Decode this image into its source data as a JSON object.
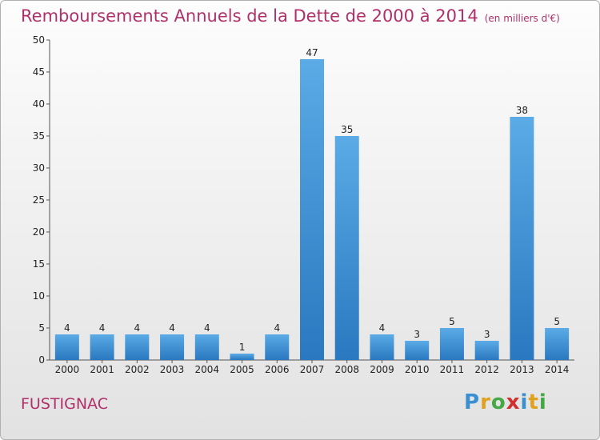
{
  "title": "Remboursements Annuels de la Dette de 2000 à 2014",
  "subtitle": "(en milliers d'€)",
  "commune": "FUSTIGNAC",
  "logo": {
    "letters": [
      {
        "char": "P",
        "color": "#3a8fd0"
      },
      {
        "char": "r",
        "color": "#e0a020"
      },
      {
        "char": "o",
        "color": "#44a844"
      },
      {
        "char": "x",
        "color": "#d03030"
      },
      {
        "char": "i",
        "color": "#3a8fd0"
      },
      {
        "char": "t",
        "color": "#e0a020"
      },
      {
        "char": "i",
        "color": "#44a844"
      }
    ]
  },
  "chart_data": {
    "type": "bar",
    "title": "Remboursements Annuels de la Dette de 2000 à 2014",
    "subtitle": "(en milliers d'€)",
    "categories": [
      "2000",
      "2001",
      "2002",
      "2003",
      "2004",
      "2005",
      "2006",
      "2007",
      "2008",
      "2009",
      "2010",
      "2011",
      "2012",
      "2013",
      "2014"
    ],
    "values": [
      4,
      4,
      4,
      4,
      4,
      1,
      4,
      47,
      35,
      4,
      3,
      5,
      3,
      38,
      5
    ],
    "ylim": [
      0,
      50
    ],
    "yticks": [
      0,
      5,
      10,
      15,
      20,
      25,
      30,
      35,
      40,
      45,
      50
    ],
    "grid": false,
    "bar_color": "#3a8fd0"
  }
}
